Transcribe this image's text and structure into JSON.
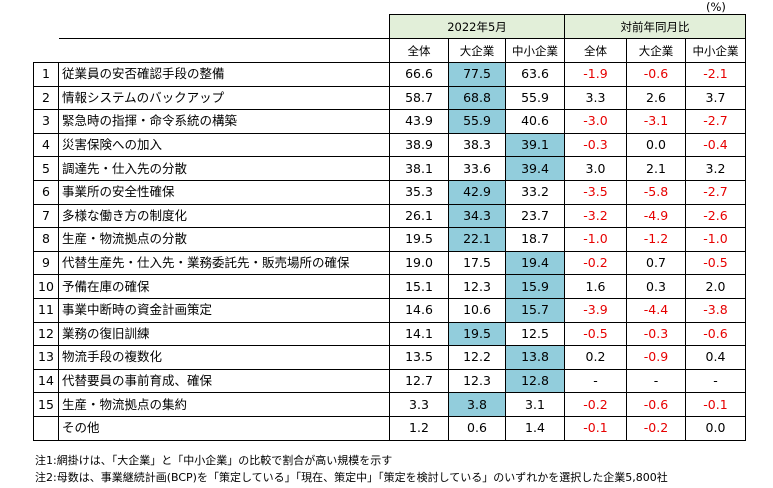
{
  "unit": "(%)",
  "header": {
    "group_current": "2022年5月",
    "group_change": "対前年同月比",
    "col_total": "全体",
    "col_large": "大企業",
    "col_sme": "中小企業"
  },
  "colors": {
    "highlight": "#92cddc",
    "header_bg": "#e2efd9",
    "negative": "#e60000"
  },
  "rows": [
    {
      "no": "1",
      "item": "従業員の安否確認手段の整備",
      "total": "66.6",
      "large": "77.5",
      "sme": "63.6",
      "d_total": "-1.9",
      "d_large": "-0.6",
      "d_sme": "-2.1",
      "hl": "large"
    },
    {
      "no": "2",
      "item": "情報システムのバックアップ",
      "total": "58.7",
      "large": "68.8",
      "sme": "55.9",
      "d_total": "3.3",
      "d_large": "2.6",
      "d_sme": "3.7",
      "hl": "large"
    },
    {
      "no": "3",
      "item": "緊急時の指揮・命令系統の構築",
      "total": "43.9",
      "large": "55.9",
      "sme": "40.6",
      "d_total": "-3.0",
      "d_large": "-3.1",
      "d_sme": "-2.7",
      "hl": "large"
    },
    {
      "no": "4",
      "item": "災害保険への加入",
      "total": "38.9",
      "large": "38.3",
      "sme": "39.1",
      "d_total": "-0.3",
      "d_large": "0.0",
      "d_sme": "-0.4",
      "hl": "sme"
    },
    {
      "no": "5",
      "item": "調達先・仕入先の分散",
      "total": "38.1",
      "large": "33.6",
      "sme": "39.4",
      "d_total": "3.0",
      "d_large": "2.1",
      "d_sme": "3.2",
      "hl": "sme"
    },
    {
      "no": "6",
      "item": "事業所の安全性確保",
      "total": "35.3",
      "large": "42.9",
      "sme": "33.2",
      "d_total": "-3.5",
      "d_large": "-5.8",
      "d_sme": "-2.7",
      "hl": "large"
    },
    {
      "no": "7",
      "item": "多様な働き方の制度化",
      "total": "26.1",
      "large": "34.3",
      "sme": "23.7",
      "d_total": "-3.2",
      "d_large": "-4.9",
      "d_sme": "-2.6",
      "hl": "large"
    },
    {
      "no": "8",
      "item": "生産・物流拠点の分散",
      "total": "19.5",
      "large": "22.1",
      "sme": "18.7",
      "d_total": "-1.0",
      "d_large": "-1.2",
      "d_sme": "-1.0",
      "hl": "large"
    },
    {
      "no": "9",
      "item": "代替生産先・仕入先・業務委託先・販売場所の確保",
      "total": "19.0",
      "large": "17.5",
      "sme": "19.4",
      "d_total": "-0.2",
      "d_large": "0.7",
      "d_sme": "-0.5",
      "hl": "sme"
    },
    {
      "no": "10",
      "item": "予備在庫の確保",
      "total": "15.1",
      "large": "12.3",
      "sme": "15.9",
      "d_total": "1.6",
      "d_large": "0.3",
      "d_sme": "2.0",
      "hl": "sme"
    },
    {
      "no": "11",
      "item": "事業中断時の資金計画策定",
      "total": "14.6",
      "large": "10.6",
      "sme": "15.7",
      "d_total": "-3.9",
      "d_large": "-4.4",
      "d_sme": "-3.8",
      "hl": "sme"
    },
    {
      "no": "12",
      "item": "業務の復旧訓練",
      "total": "14.1",
      "large": "19.5",
      "sme": "12.5",
      "d_total": "-0.5",
      "d_large": "-0.3",
      "d_sme": "-0.6",
      "hl": "large"
    },
    {
      "no": "13",
      "item": "物流手段の複数化",
      "total": "13.5",
      "large": "12.2",
      "sme": "13.8",
      "d_total": "0.2",
      "d_large": "-0.9",
      "d_sme": "0.4",
      "hl": "sme"
    },
    {
      "no": "14",
      "item": "代替要員の事前育成、確保",
      "total": "12.7",
      "large": "12.3",
      "sme": "12.8",
      "d_total": "-",
      "d_large": "-",
      "d_sme": "-",
      "hl": "sme"
    },
    {
      "no": "15",
      "item": "生産・物流拠点の集約",
      "total": "3.3",
      "large": "3.8",
      "sme": "3.1",
      "d_total": "-0.2",
      "d_large": "-0.6",
      "d_sme": "-0.1",
      "hl": "large"
    },
    {
      "no": "",
      "item": "その他",
      "total": "1.2",
      "large": "0.6",
      "sme": "1.4",
      "d_total": "-0.1",
      "d_large": "-0.2",
      "d_sme": "0.0",
      "hl": ""
    }
  ],
  "notes": [
    "注1:網掛けは、「大企業」と「中小企業」の比較で割合が高い規模を示す",
    "注2:母数は、事業継続計画(BCP)を「策定している」「現在、策定中」「策定を検討している」のいずれかを選択した企業5,800社"
  ]
}
